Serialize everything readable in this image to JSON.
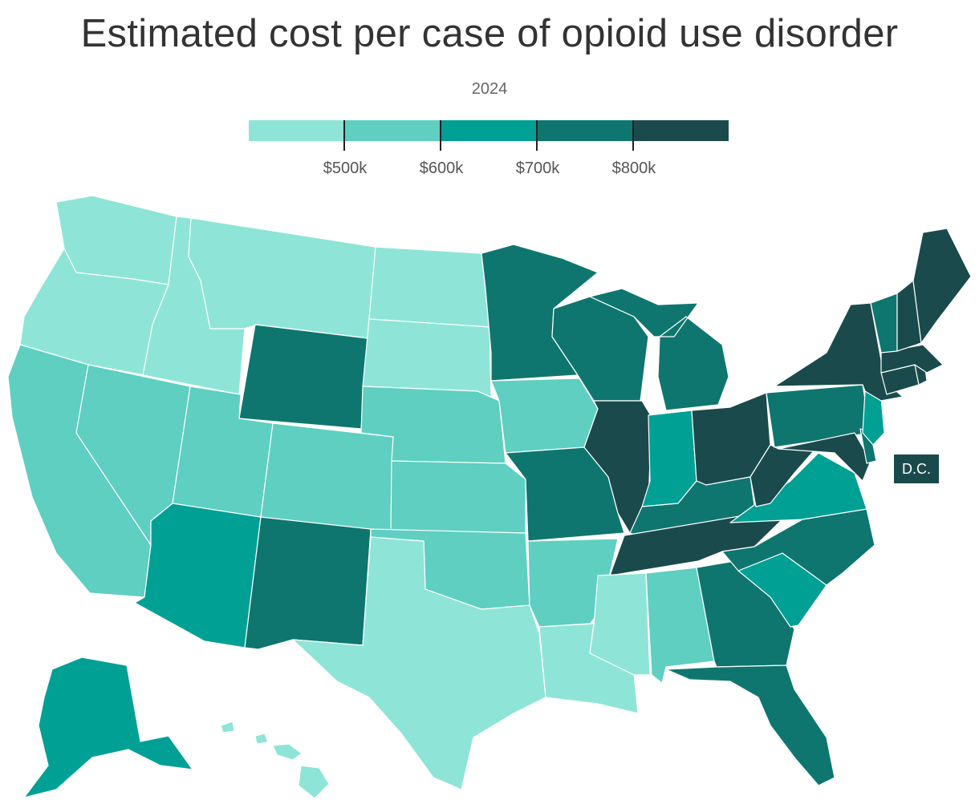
{
  "title": "Estimated cost per case of opioid use disorder",
  "subtitle": "2024",
  "legend": {
    "bins": [
      {
        "color": "#8ee5d7"
      },
      {
        "color": "#5ecfc0"
      },
      {
        "color": "#00a095"
      },
      {
        "color": "#0e766f"
      },
      {
        "color": "#1a4a4c"
      }
    ],
    "ticks": [
      "$500k",
      "$600k",
      "$700k",
      "$800k"
    ]
  },
  "dc_label": "D.C.",
  "chart_data": {
    "type": "choropleth",
    "title": "Estimated cost per case of opioid use disorder",
    "year": "2024",
    "bin_edges": [
      "$500k",
      "$600k",
      "$700k",
      "$800k"
    ],
    "states": {
      "WA": 0,
      "OR": 0,
      "ID": 0,
      "MT": 0,
      "ND": 0,
      "SD": 0,
      "TX": 0,
      "LA": 0,
      "MS": 0,
      "HI": 0,
      "CA": 1,
      "NV": 1,
      "UT": 1,
      "CO": 1,
      "NE": 1,
      "KS": 1,
      "OK": 1,
      "IA": 1,
      "AR": 1,
      "AL": 1,
      "AZ": 2,
      "IN": 2,
      "VA": 2,
      "SC": 2,
      "NJ": 2,
      "AK": 2,
      "WY": 3,
      "NM": 3,
      "MN": 3,
      "WI": 3,
      "MI": 3,
      "MO": 3,
      "KY": 3,
      "NC": 3,
      "GA": 3,
      "FL": 3,
      "PA": 3,
      "VT": 3,
      "DE": 3,
      "IL": 4,
      "OH": 4,
      "WV": 4,
      "TN": 4,
      "NY": 4,
      "ME": 4,
      "NH": 4,
      "MA": 4,
      "CT": 4,
      "RI": 4,
      "MD": 4,
      "DC": 4
    }
  }
}
